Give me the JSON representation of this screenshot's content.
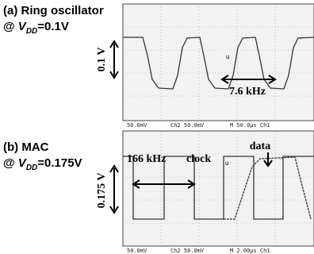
{
  "panels": [
    {
      "title": "(a) Ring oscillator",
      "condition": {
        "prefix": "@ ",
        "symbol": "V",
        "subscript": "DD",
        "rest": "=0.1V"
      },
      "amplitude": "0.1 V",
      "frequency": "7.6 kHz",
      "footer": [
        "50.0mV",
        "Ch2 50.0mV",
        "M 50.0μs Ch1"
      ]
    },
    {
      "title": "(b) MAC",
      "condition": {
        "prefix": "@ ",
        "symbol": "V",
        "subscript": "DD",
        "rest": "=0.175V"
      },
      "amplitude": "0.175 V",
      "frequency": "166 kHz",
      "clock": "clock",
      "data": "data",
      "footer": [
        "50.0mV",
        "Ch2 50.0mV",
        "M 2.00μs Ch1"
      ]
    }
  ]
}
